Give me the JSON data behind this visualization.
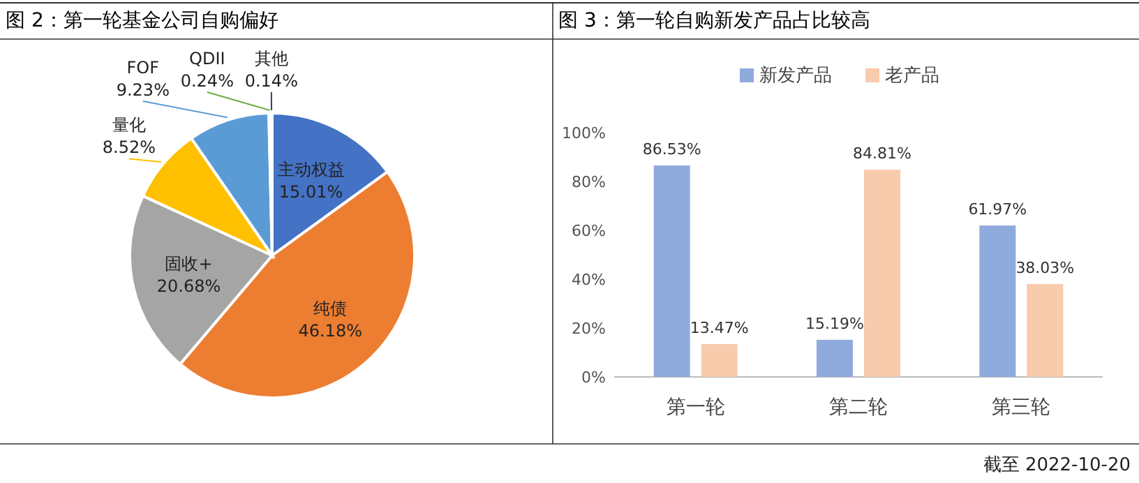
{
  "chart_data": [
    {
      "type": "pie",
      "title": "图 2：第一轮基金公司自购偏好",
      "categories": [
        "主动权益",
        "纯债",
        "固收+",
        "量化",
        "FOF",
        "QDII",
        "其他"
      ],
      "values": [
        15.01,
        46.18,
        20.68,
        8.52,
        9.23,
        0.24,
        0.14
      ],
      "colors": [
        "#4472c4",
        "#ed7d31",
        "#a5a5a5",
        "#ffc000",
        "#5b9bd5",
        "#70ad47",
        "#264478"
      ],
      "value_labels": [
        "15.01%",
        "46.18%",
        "20.68%",
        "8.52%",
        "9.23%",
        "0.24%",
        "0.14%"
      ]
    },
    {
      "type": "bar",
      "title": "图 3：第一轮自购新发产品占比较高",
      "categories": [
        "第一轮",
        "第二轮",
        "第三轮"
      ],
      "series": [
        {
          "name": "新发产品",
          "color": "#8faadc",
          "values": [
            86.53,
            15.19,
            61.97
          ],
          "value_labels": [
            "86.53%",
            "15.19%",
            "61.97%"
          ]
        },
        {
          "name": "老产品",
          "color": "#f8cbad",
          "values": [
            13.47,
            84.81,
            38.03
          ],
          "value_labels": [
            "13.47%",
            "84.81%",
            "38.03%"
          ]
        }
      ],
      "ylim": [
        0,
        100
      ],
      "yticks": [
        {
          "value": 0,
          "label": "0%"
        },
        {
          "value": 20,
          "label": "20%"
        },
        {
          "value": 40,
          "label": "40%"
        },
        {
          "value": 60,
          "label": "60%"
        },
        {
          "value": 80,
          "label": "80%"
        },
        {
          "value": 100,
          "label": "100%"
        }
      ],
      "legend": "top",
      "grid": false,
      "annotations": [
        "截至 2022-10-20"
      ]
    }
  ]
}
